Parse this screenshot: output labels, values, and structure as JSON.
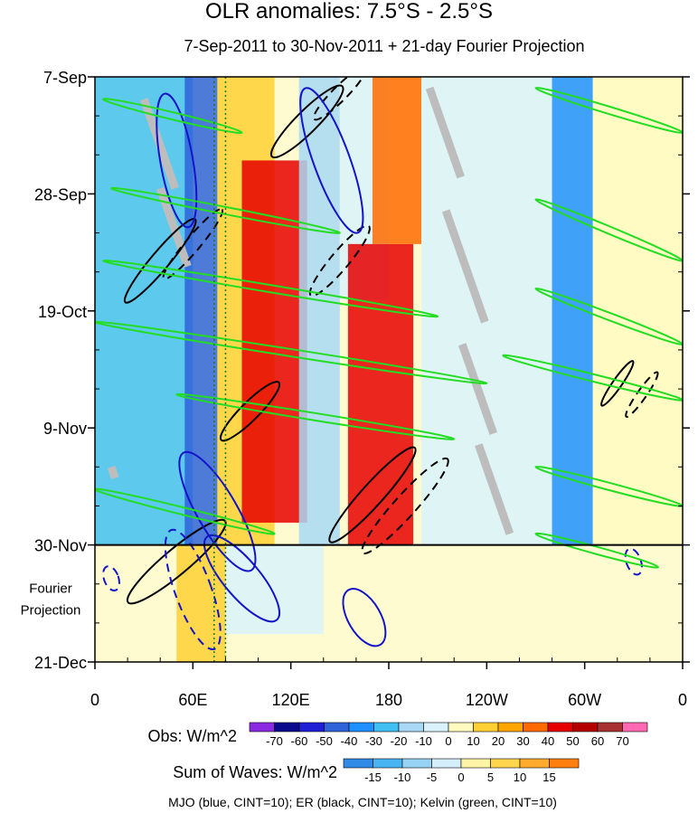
{
  "chart_data": {
    "type": "heatmap",
    "title": "OLR anomalies: 7.5°S - 2.5°S",
    "subtitle": "7-Sep-2011 to 30-Nov-2011 + 21-day Fourier Projection",
    "x_axis": {
      "ticks": [
        "0",
        "60E",
        "120E",
        "180",
        "120W",
        "60W",
        "0"
      ],
      "tick_values": [
        0,
        60,
        120,
        180,
        240,
        300,
        360
      ],
      "range": [
        0,
        360
      ]
    },
    "y_axis": {
      "ticks": [
        "7-Sep",
        "28-Sep",
        "19-Oct",
        "9-Nov",
        "30-Nov",
        "21-Dec"
      ],
      "tick_days": [
        0,
        21,
        42,
        63,
        84,
        105
      ],
      "range_days": [
        0,
        105
      ],
      "direction": "time increases downward"
    },
    "projection_start_day": 84,
    "projection_label": "Fourier\nProjection",
    "obs_colorbar": {
      "label": "Obs: W/m^2",
      "levels": [
        "-70",
        "-60",
        "-50",
        "-40",
        "-30",
        "-20",
        "-10",
        "0",
        "10",
        "20",
        "30",
        "40",
        "50",
        "60",
        "70"
      ],
      "colors": [
        "#8a2be2",
        "#0a0a8c",
        "#1f1fd6",
        "#2f63d9",
        "#1e90ff",
        "#3fbff2",
        "#a8d8f5",
        "#d9f2fb",
        "#fffac0",
        "#ffd033",
        "#ffa500",
        "#ff6a00",
        "#e60000",
        "#b40000",
        "#a83232",
        "#ff69b4"
      ]
    },
    "waves_colorbar": {
      "label": "Sum of Waves: W/m^2",
      "levels": [
        "-15",
        "-10",
        "-5",
        "0",
        "5",
        "10",
        "15"
      ],
      "colors": [
        "#2f8be6",
        "#48b4f2",
        "#96d3f5",
        "#d4eefb",
        "#fff3a8",
        "#ffd54d",
        "#ffab2e",
        "#ff7f0e"
      ]
    },
    "legend": "MJO (blue, CINT=10); ER (black, CINT=10); Kelvin (green, CINT=10)",
    "contour_colors": {
      "MJO": "#1414c8",
      "ER": "#000000",
      "Kelvin": "#22dd22"
    },
    "anomaly_bands": [
      {
        "lon_start": 0,
        "lon_end": 60,
        "day_start": 0,
        "day_end": 84,
        "value": -25
      },
      {
        "lon_start": 55,
        "lon_end": 75,
        "day_start": 0,
        "day_end": 84,
        "value": -45
      },
      {
        "lon_start": 75,
        "lon_end": 110,
        "day_start": 0,
        "day_end": 84,
        "value": 15
      },
      {
        "lon_start": 90,
        "lon_end": 130,
        "day_start": 15,
        "day_end": 80,
        "value": 40
      },
      {
        "lon_start": 125,
        "lon_end": 150,
        "day_start": 0,
        "day_end": 84,
        "value": -20
      },
      {
        "lon_start": 150,
        "lon_end": 180,
        "day_start": 0,
        "day_end": 40,
        "value": -10
      },
      {
        "lon_start": 155,
        "lon_end": 195,
        "day_start": 30,
        "day_end": 84,
        "value": 45
      },
      {
        "lon_start": 170,
        "lon_end": 200,
        "day_start": 0,
        "day_end": 30,
        "value": 30
      },
      {
        "lon_start": 200,
        "lon_end": 280,
        "day_start": 0,
        "day_end": 84,
        "value": -5
      },
      {
        "lon_start": 280,
        "lon_end": 305,
        "day_start": 0,
        "day_end": 84,
        "value": -40
      },
      {
        "lon_start": 305,
        "lon_end": 360,
        "day_start": 0,
        "day_end": 84,
        "value": 5
      },
      {
        "lon_start": 50,
        "lon_end": 80,
        "day_start": 84,
        "day_end": 105,
        "value": 10
      },
      {
        "lon_start": 80,
        "lon_end": 140,
        "day_start": 84,
        "day_end": 100,
        "value": -5
      }
    ],
    "gray_marks": [
      {
        "lon": 205,
        "day_start": 2,
        "day_end": 18
      },
      {
        "lon": 215,
        "day_start": 24,
        "day_end": 44
      },
      {
        "lon": 225,
        "day_start": 48,
        "day_end": 64
      },
      {
        "lon": 235,
        "day_start": 66,
        "day_end": 82
      },
      {
        "lon": 30,
        "day_start": 4,
        "day_end": 20
      },
      {
        "lon": 40,
        "day_start": 20,
        "day_end": 34
      },
      {
        "lon": 10,
        "day_start": 70,
        "day_end": 72
      }
    ],
    "kelvin_waves": [
      {
        "lon1": 5,
        "day1": 4,
        "lon2": 90,
        "day2": 10
      },
      {
        "lon1": 10,
        "day1": 20,
        "lon2": 150,
        "day2": 28
      },
      {
        "lon1": 5,
        "day1": 33,
        "lon2": 210,
        "day2": 43
      },
      {
        "lon1": 0,
        "day1": 44,
        "lon2": 240,
        "day2": 55
      },
      {
        "lon1": 50,
        "day1": 57,
        "lon2": 220,
        "day2": 65
      },
      {
        "lon1": 0,
        "day1": 74,
        "lon2": 110,
        "day2": 82
      },
      {
        "lon1": 270,
        "day1": 2,
        "lon2": 360,
        "day2": 10
      },
      {
        "lon1": 270,
        "day1": 22,
        "lon2": 360,
        "day2": 33
      },
      {
        "lon1": 270,
        "day1": 38,
        "lon2": 360,
        "day2": 48
      },
      {
        "lon1": 250,
        "day1": 50,
        "lon2": 360,
        "day2": 58
      },
      {
        "lon1": 270,
        "day1": 70,
        "lon2": 360,
        "day2": 77
      },
      {
        "lon1": 270,
        "day1": 82,
        "lon2": 345,
        "day2": 88
      }
    ],
    "er_waves": [
      {
        "lon": 130,
        "day": 8,
        "rx": 55,
        "ry": 12,
        "angle": -45,
        "dashed": false
      },
      {
        "lon": 150,
        "day": 3,
        "rx": 40,
        "ry": 8,
        "angle": -45,
        "dashed": true
      },
      {
        "lon": 40,
        "day": 33,
        "rx": 60,
        "ry": 10,
        "angle": -50,
        "dashed": false
      },
      {
        "lon": 60,
        "day": 30,
        "rx": 50,
        "ry": 8,
        "angle": -50,
        "dashed": true
      },
      {
        "lon": 150,
        "day": 33,
        "rx": 50,
        "ry": 10,
        "angle": -50,
        "dashed": true
      },
      {
        "lon": 170,
        "day": 75,
        "rx": 70,
        "ry": 12,
        "angle": -48,
        "dashed": false
      },
      {
        "lon": 190,
        "day": 77,
        "rx": 70,
        "ry": 12,
        "angle": -48,
        "dashed": true
      },
      {
        "lon": 95,
        "day": 60,
        "rx": 45,
        "ry": 10,
        "angle": -45,
        "dashed": false
      },
      {
        "lon": 50,
        "day": 87,
        "rx": 70,
        "ry": 14,
        "angle": -40,
        "dashed": false
      },
      {
        "lon": 320,
        "day": 55,
        "rx": 30,
        "ry": 5,
        "angle": -55,
        "dashed": false
      },
      {
        "lon": 335,
        "day": 57,
        "rx": 30,
        "ry": 5,
        "angle": -55,
        "dashed": true
      }
    ],
    "mjo_waves": [
      {
        "lon": 50,
        "day": 15,
        "rx": 18,
        "ry": 75,
        "angle": -10,
        "dashed": false
      },
      {
        "lon": 145,
        "day": 15,
        "rx": 20,
        "ry": 85,
        "angle": -20,
        "dashed": false
      },
      {
        "lon": 75,
        "day": 78,
        "rx": 22,
        "ry": 75,
        "angle": -30,
        "dashed": false
      },
      {
        "lon": 90,
        "day": 90,
        "rx": 20,
        "ry": 60,
        "angle": -40,
        "dashed": false
      },
      {
        "lon": 60,
        "day": 92,
        "rx": 20,
        "ry": 70,
        "angle": -20,
        "dashed": true
      },
      {
        "lon": 165,
        "day": 97,
        "rx": 18,
        "ry": 35,
        "angle": -30,
        "dashed": false
      },
      {
        "lon": 10,
        "day": 90,
        "rx": 8,
        "ry": 14,
        "angle": -20,
        "dashed": true
      },
      {
        "lon": 330,
        "day": 87,
        "rx": 8,
        "ry": 15,
        "angle": -20,
        "dashed": true
      }
    ],
    "dotted_lines": [
      {
        "lon": 73,
        "day_start": 0,
        "day_end": 105
      },
      {
        "lon": 80,
        "day_start": 0,
        "day_end": 105
      }
    ]
  }
}
